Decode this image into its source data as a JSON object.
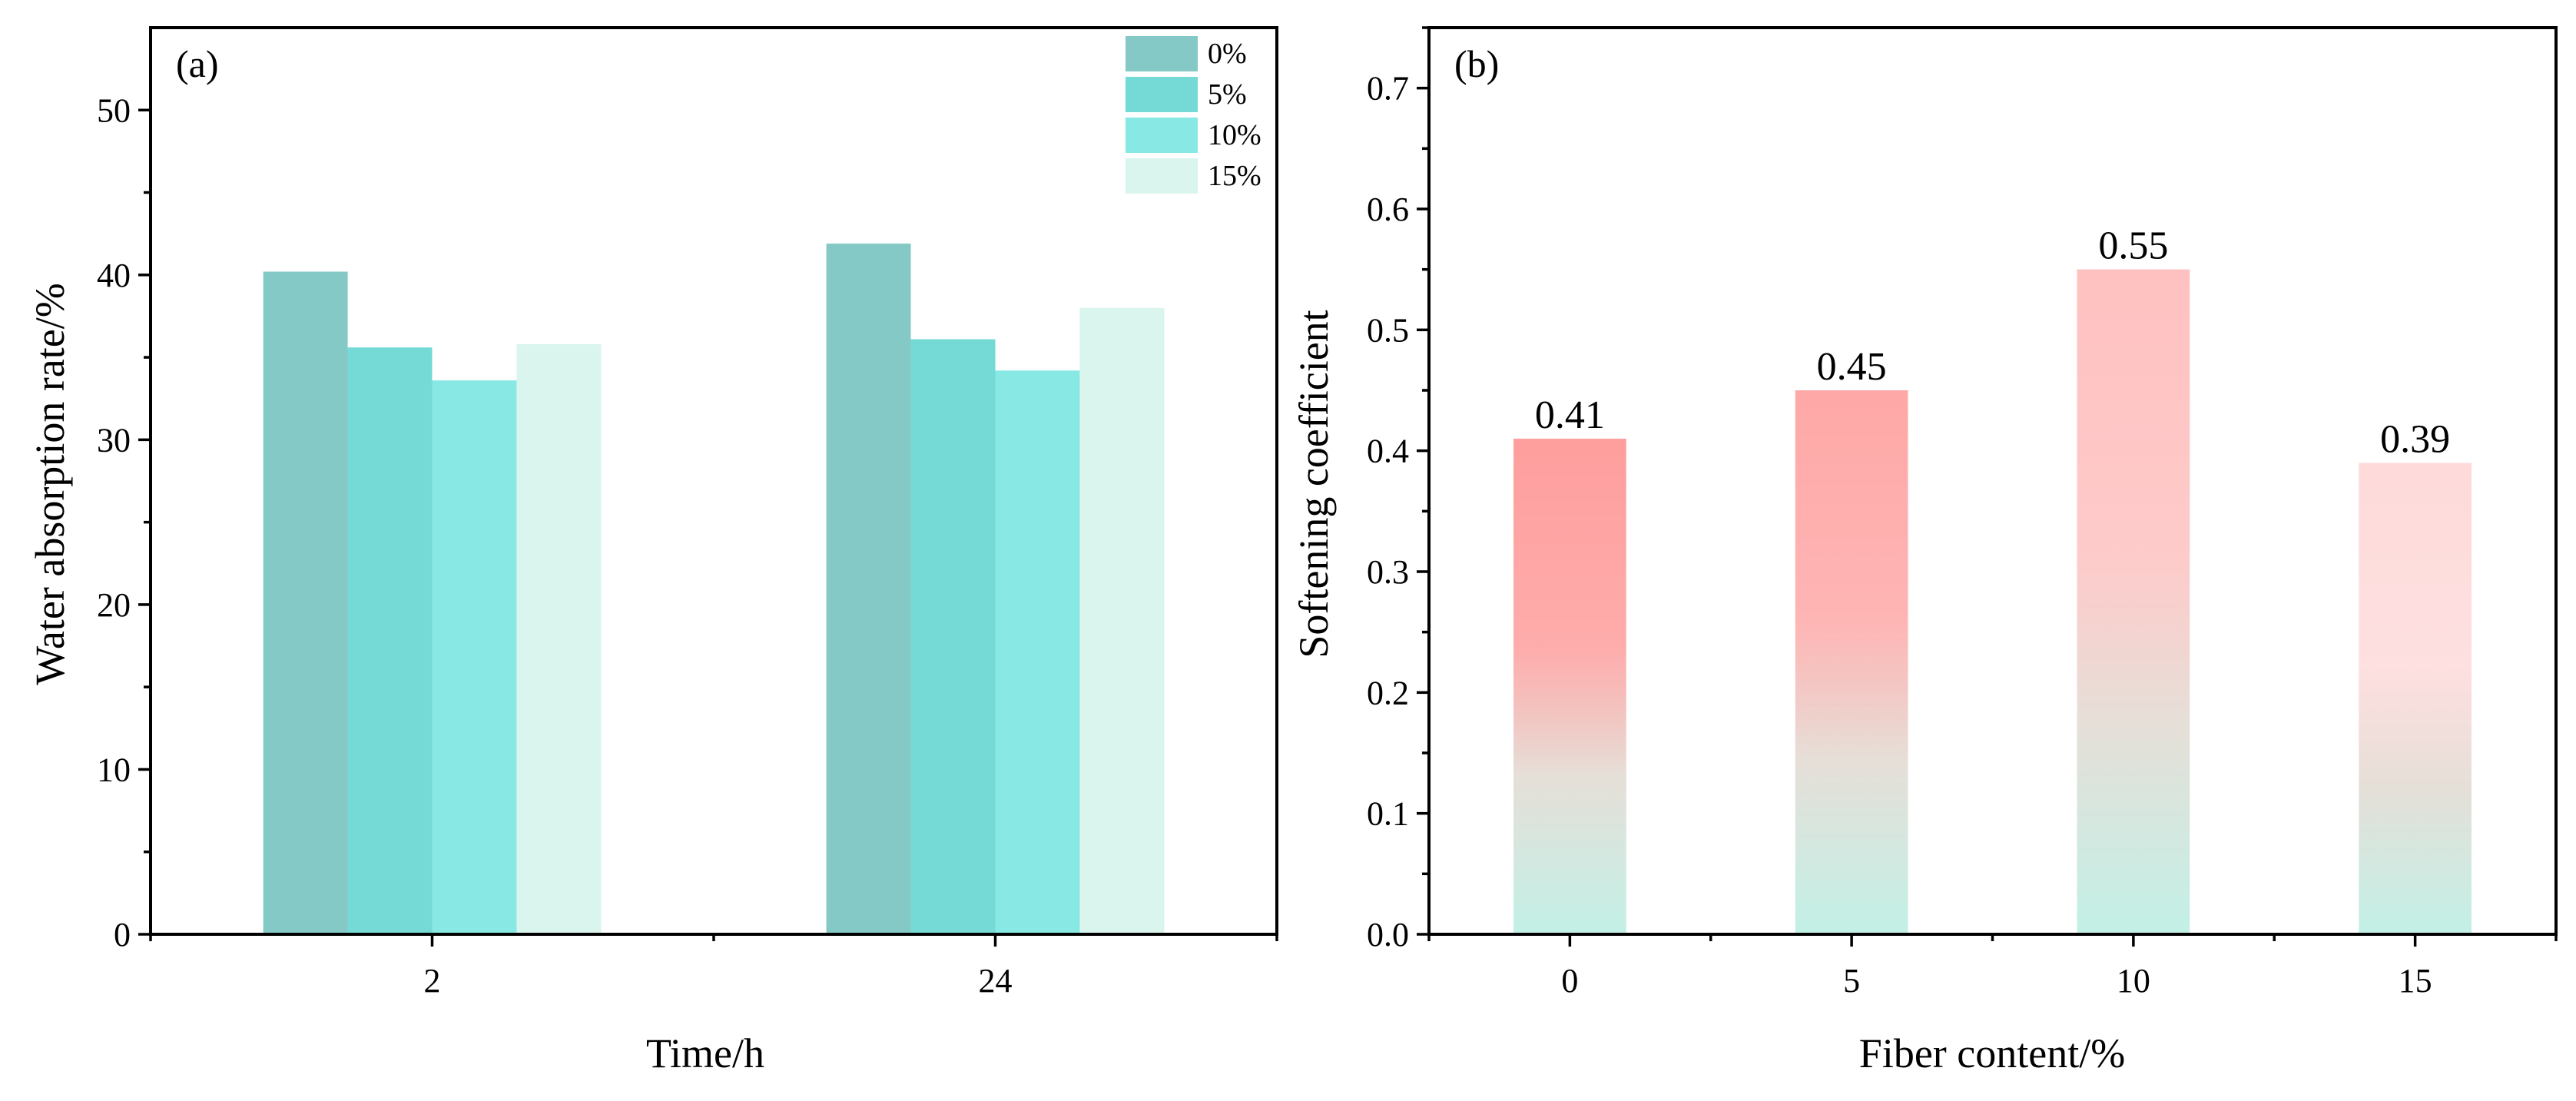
{
  "figure": {
    "panels": [
      "(a)",
      "(b)"
    ]
  },
  "chart_data": [
    {
      "id": "a",
      "type": "bar",
      "panel_label": "(a)",
      "title": "",
      "xlabel": "Time/h",
      "ylabel": "Water absorption rate/%",
      "categories": [
        "2",
        "24"
      ],
      "ylim": [
        0,
        55
      ],
      "yticks": [
        0,
        10,
        20,
        30,
        40,
        50
      ],
      "yminor": 5,
      "legend_position": "top-right",
      "series": [
        {
          "name": "0%",
          "color": "#84C9C6",
          "values": [
            40.2,
            41.9
          ]
        },
        {
          "name": "5%",
          "color": "#75D9D6",
          "values": [
            35.6,
            36.1
          ]
        },
        {
          "name": "10%",
          "color": "#88E8E3",
          "values": [
            33.6,
            34.2
          ]
        },
        {
          "name": "15%",
          "color": "#DAF4EE",
          "values": [
            35.8,
            38.0
          ]
        }
      ]
    },
    {
      "id": "b",
      "type": "bar",
      "panel_label": "(b)",
      "title": "",
      "xlabel": "Fiber content/%",
      "ylabel": "Softening coefficient",
      "categories": [
        "0",
        "5",
        "10",
        "15"
      ],
      "values": [
        0.41,
        0.45,
        0.55,
        0.39
      ],
      "data_labels": [
        "0.41",
        "0.45",
        "0.55",
        "0.39"
      ],
      "ylim": [
        0,
        0.75
      ],
      "yticks": [
        0.0,
        0.1,
        0.2,
        0.3,
        0.4,
        0.5,
        0.6,
        0.7
      ],
      "yminor": 0.05,
      "gradient": {
        "top_colors": [
          "#FE9E9D",
          "#FEA8A7",
          "#FEC1C0",
          "#FEDADA"
        ],
        "bottom_color": "#C2F0E6"
      }
    }
  ]
}
